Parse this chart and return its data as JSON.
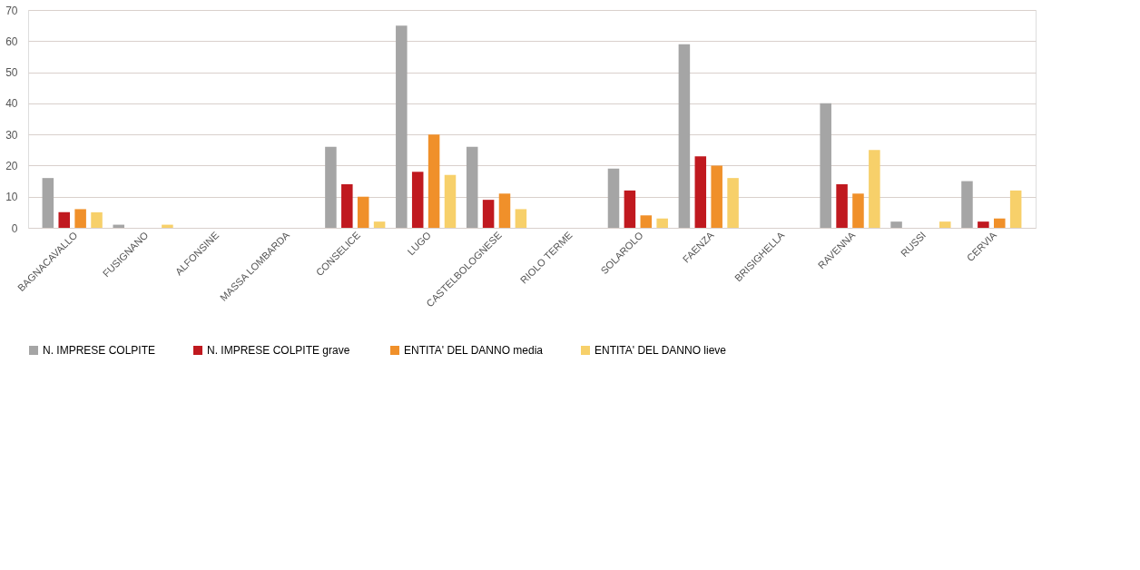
{
  "chart_data": {
    "type": "bar",
    "categories": [
      "BAGNACAVALLO",
      "FUSIGNANO",
      "ALFONSINE",
      "MASSA LOMBARDA",
      "CONSELICE",
      "LUGO",
      "CASTELBOLOGNESE",
      "RIOLO TERME",
      "SOLAROLO",
      "FAENZA",
      "BRISIGHELLA",
      "RAVENNA",
      "RUSSI",
      "CERVIA"
    ],
    "series": [
      {
        "name": "N. IMPRESE COLPITE",
        "color": "#a5a5a5",
        "values": [
          16,
          1,
          0,
          0,
          26,
          65,
          26,
          0,
          19,
          59,
          0,
          40,
          2,
          15
        ]
      },
      {
        "name": "N. IMPRESE COLPITE  grave",
        "color": "#c0191f",
        "values": [
          5,
          0,
          0,
          0,
          14,
          18,
          9,
          0,
          12,
          23,
          0,
          14,
          0,
          2
        ]
      },
      {
        "name": "ENTITA' DEL DANNO media",
        "color": "#f0902a",
        "values": [
          6,
          0,
          0,
          0,
          10,
          30,
          11,
          0,
          4,
          20,
          0,
          11,
          0,
          3
        ]
      },
      {
        "name": "ENTITA' DEL DANNO lieve",
        "color": "#f7d06a",
        "values": [
          5,
          1,
          0,
          0,
          2,
          17,
          6,
          0,
          3,
          16,
          0,
          25,
          2,
          12
        ]
      }
    ],
    "ylim": [
      0,
      70
    ],
    "yticks": [
      0,
      10,
      20,
      30,
      40,
      50,
      60,
      70
    ],
    "grid": "y",
    "legend": "bottom"
  }
}
